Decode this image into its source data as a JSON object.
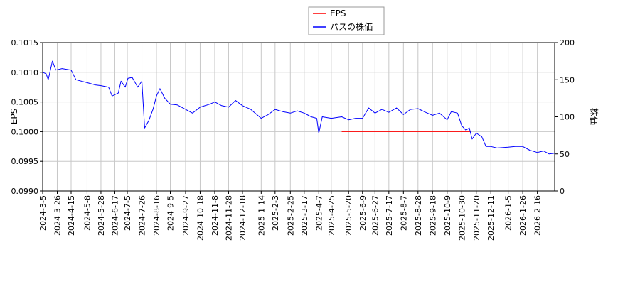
{
  "chart_data": {
    "type": "line",
    "xlabel": "",
    "ylabel_left": "EPS",
    "ylabel_right": "株価",
    "ylim_left": [
      0.099,
      0.1015
    ],
    "ylim_right": [
      0,
      200
    ],
    "xlim": [
      "2024-03-05",
      "2026-03-13"
    ],
    "grid": true,
    "legend_position": "top-center",
    "x_tick_labels": [
      "2024-3-5",
      "2024-3-26",
      "2024-4-15",
      "2024-5-8",
      "2024-5-28",
      "2024-6-17",
      "2024-7-5",
      "2024-7-26",
      "2024-8-16",
      "2024-9-5",
      "2024-9-27",
      "2024-10-18",
      "2024-11-8",
      "2024-11-28",
      "2024-12-18",
      "2025-1-14",
      "2025-2-3",
      "2025-2-25",
      "2025-3-17",
      "2025-4-7",
      "2025-4-25",
      "2025-5-20",
      "2025-6-9",
      "2025-6-27",
      "2025-7-17",
      "2025-8-7",
      "2025-8-28",
      "2025-9-18",
      "2025-10-9",
      "2025-10-30",
      "2025-11-20",
      "2025-12-11",
      "2026-1-5",
      "2026-1-26",
      "2026-2-16"
    ],
    "y_left_tick_labels": [
      "0.0990",
      "0.0995",
      "0.1000",
      "0.1005",
      "0.1010",
      "0.1015"
    ],
    "y_right_tick_labels": [
      "0",
      "50",
      "100",
      "150",
      "200"
    ],
    "series": [
      {
        "name": "EPS",
        "axis": "left",
        "color": "#ff0000",
        "points": [
          [
            "2025-05-10",
            0.1
          ],
          [
            "2025-11-12",
            0.1
          ]
        ]
      },
      {
        "name": "パスの株価",
        "axis": "right",
        "color": "#0000ff",
        "points": [
          [
            "2024-03-05",
            160
          ],
          [
            "2024-03-10",
            158
          ],
          [
            "2024-03-13",
            150
          ],
          [
            "2024-03-19",
            175
          ],
          [
            "2024-03-24",
            163
          ],
          [
            "2024-04-02",
            165
          ],
          [
            "2024-04-15",
            163
          ],
          [
            "2024-04-22",
            150
          ],
          [
            "2024-05-08",
            146
          ],
          [
            "2024-05-20",
            143
          ],
          [
            "2024-05-28",
            142
          ],
          [
            "2024-06-08",
            140
          ],
          [
            "2024-06-13",
            128
          ],
          [
            "2024-06-22",
            132
          ],
          [
            "2024-06-26",
            148
          ],
          [
            "2024-07-02",
            140
          ],
          [
            "2024-07-06",
            152
          ],
          [
            "2024-07-12",
            153
          ],
          [
            "2024-07-20",
            140
          ],
          [
            "2024-07-26",
            148
          ],
          [
            "2024-07-30",
            85
          ],
          [
            "2024-08-05",
            95
          ],
          [
            "2024-08-11",
            110
          ],
          [
            "2024-08-16",
            128
          ],
          [
            "2024-08-21",
            138
          ],
          [
            "2024-08-28",
            125
          ],
          [
            "2024-09-05",
            117
          ],
          [
            "2024-09-15",
            116
          ],
          [
            "2024-09-27",
            110
          ],
          [
            "2024-10-07",
            105
          ],
          [
            "2024-10-18",
            113
          ],
          [
            "2024-11-01",
            117
          ],
          [
            "2024-11-08",
            120
          ],
          [
            "2024-11-18",
            115
          ],
          [
            "2024-11-28",
            113
          ],
          [
            "2024-12-08",
            122
          ],
          [
            "2024-12-18",
            115
          ],
          [
            "2024-12-30",
            110
          ],
          [
            "2025-01-14",
            98
          ],
          [
            "2025-01-24",
            103
          ],
          [
            "2025-02-03",
            110
          ],
          [
            "2025-02-14",
            107
          ],
          [
            "2025-02-25",
            105
          ],
          [
            "2025-03-07",
            108
          ],
          [
            "2025-03-17",
            105
          ],
          [
            "2025-03-27",
            100
          ],
          [
            "2025-04-04",
            98
          ],
          [
            "2025-04-07",
            78
          ],
          [
            "2025-04-12",
            100
          ],
          [
            "2025-04-25",
            98
          ],
          [
            "2025-05-10",
            100
          ],
          [
            "2025-05-20",
            96
          ],
          [
            "2025-05-30",
            98
          ],
          [
            "2025-06-09",
            98
          ],
          [
            "2025-06-18",
            112
          ],
          [
            "2025-06-27",
            105
          ],
          [
            "2025-07-07",
            110
          ],
          [
            "2025-07-17",
            106
          ],
          [
            "2025-07-28",
            112
          ],
          [
            "2025-08-07",
            103
          ],
          [
            "2025-08-17",
            110
          ],
          [
            "2025-08-28",
            111
          ],
          [
            "2025-09-08",
            106
          ],
          [
            "2025-09-18",
            102
          ],
          [
            "2025-09-28",
            105
          ],
          [
            "2025-10-09",
            96
          ],
          [
            "2025-10-15",
            107
          ],
          [
            "2025-10-24",
            105
          ],
          [
            "2025-10-30",
            88
          ],
          [
            "2025-11-05",
            82
          ],
          [
            "2025-11-10",
            85
          ],
          [
            "2025-11-14",
            70
          ],
          [
            "2025-11-20",
            78
          ],
          [
            "2025-11-28",
            73
          ],
          [
            "2025-12-04",
            60
          ],
          [
            "2025-12-11",
            60
          ],
          [
            "2025-12-20",
            58
          ],
          [
            "2026-01-05",
            59
          ],
          [
            "2026-01-15",
            60
          ],
          [
            "2026-01-26",
            60
          ],
          [
            "2026-02-05",
            55
          ],
          [
            "2026-02-16",
            52
          ],
          [
            "2026-02-25",
            54
          ],
          [
            "2026-03-05",
            50
          ],
          [
            "2026-03-13",
            51
          ]
        ]
      }
    ]
  }
}
